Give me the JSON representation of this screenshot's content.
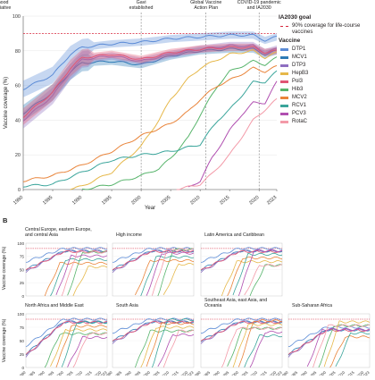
{
  "panel_a": {
    "ylabel": "Vaccine coverage (%)",
    "xlabel": "Year",
    "events": [
      {
        "year": 1974,
        "label": "Universal childhood immunisation initiative"
      },
      {
        "year": 2000,
        "label": "Gavi established"
      },
      {
        "year": 2011,
        "label": "Global Vaccine Action Plan"
      },
      {
        "year": 2020,
        "label": "COVID-19 pandemic and IA2030"
      }
    ],
    "goal": {
      "value": 90,
      "label": "90% coverage for life-course vaccines"
    }
  },
  "panel_b": {
    "label": "B",
    "ylabel": "Vaccine coverage (%)"
  },
  "legend": {
    "goal_title": "IA2030 goal",
    "goal_item": "90% coverage for life-course vaccines",
    "vaccine_title": "Vaccine",
    "items": [
      {
        "name": "DTP1",
        "color": "#5b8bd6"
      },
      {
        "name": "MCV1",
        "color": "#2e7bb6"
      },
      {
        "name": "DTP3",
        "color": "#8e6fc1"
      },
      {
        "name": "HepB3",
        "color": "#e6b84a"
      },
      {
        "name": "Pol3",
        "color": "#e15574"
      },
      {
        "name": "Hib3",
        "color": "#57b46b"
      },
      {
        "name": "MCV2",
        "color": "#e9843a"
      },
      {
        "name": "RCV1",
        "color": "#3aa59b"
      },
      {
        "name": "PCV3",
        "color": "#b04fb0"
      },
      {
        "name": "RotaC",
        "color": "#f39aa8"
      }
    ]
  },
  "chart_data": [
    {
      "type": "line",
      "panel": "A",
      "xlabel": "Year",
      "ylabel": "Vaccine coverage (%)",
      "xlim": [
        1980,
        2023
      ],
      "ylim": [
        0,
        100
      ],
      "x_ticks": [
        "1980",
        "1985",
        "1990",
        "1995",
        "2000",
        "2005",
        "2010",
        "2015",
        "2020",
        "2023"
      ],
      "y_ticks": [
        "0",
        "20",
        "40",
        "60",
        "80",
        "100"
      ],
      "reference_line": {
        "y": 90,
        "label": "90% coverage for life-course vaccines"
      },
      "series": [
        {
          "name": "DTP1",
          "x": [
            1980,
            1985,
            1988,
            1990,
            1995,
            2000,
            2005,
            2010,
            2015,
            2019,
            2021,
            2023
          ],
          "y": [
            58,
            66,
            78,
            82,
            84,
            85,
            87,
            88,
            89,
            89,
            86,
            88
          ]
        },
        {
          "name": "MCV1",
          "x": [
            1980,
            1985,
            1988,
            1990,
            1995,
            2000,
            2005,
            2010,
            2015,
            2019,
            2021,
            2023
          ],
          "y": [
            44,
            56,
            68,
            73,
            74,
            72,
            77,
            80,
            81,
            81,
            78,
            80
          ]
        },
        {
          "name": "DTP3",
          "x": [
            1980,
            1985,
            1988,
            1990,
            1995,
            2000,
            2005,
            2010,
            2015,
            2019,
            2021,
            2023
          ],
          "y": [
            40,
            54,
            68,
            75,
            77,
            74,
            78,
            81,
            83,
            83,
            79,
            81
          ]
        },
        {
          "name": "Pol3",
          "x": [
            1980,
            1985,
            1988,
            1990,
            1995,
            2000,
            2005,
            2010,
            2015,
            2019,
            2021,
            2023
          ],
          "y": [
            42,
            56,
            70,
            76,
            78,
            75,
            79,
            81,
            82,
            82,
            79,
            80
          ]
        },
        {
          "name": "Hib3",
          "x": [
            1990,
            1995,
            2000,
            2003,
            2005,
            2008,
            2010,
            2013,
            2015,
            2019,
            2021,
            2023
          ],
          "y": [
            0,
            3,
            8,
            12,
            18,
            30,
            43,
            60,
            68,
            74,
            72,
            76
          ]
        },
        {
          "name": "HepB3",
          "x": [
            1988,
            1990,
            1995,
            2000,
            2003,
            2005,
            2008,
            2010,
            2013,
            2015,
            2019,
            2021,
            2023
          ],
          "y": [
            0,
            2,
            10,
            25,
            40,
            52,
            64,
            70,
            75,
            78,
            80,
            76,
            79
          ]
        },
        {
          "name": "MCV2",
          "x": [
            1980,
            1985,
            1990,
            1995,
            2000,
            2005,
            2008,
            2010,
            2013,
            2015,
            2019,
            2021,
            2023
          ],
          "y": [
            5,
            8,
            14,
            22,
            31,
            38,
            45,
            52,
            60,
            63,
            70,
            68,
            71
          ]
        },
        {
          "name": "RCV1",
          "x": [
            1980,
            1985,
            1990,
            1995,
            2000,
            2005,
            2010,
            2013,
            2015,
            2019,
            2021,
            2023
          ],
          "y": [
            2,
            3,
            10,
            17,
            20,
            22,
            26,
            40,
            46,
            62,
            62,
            68
          ]
        },
        {
          "name": "PCV3",
          "x": [
            2008,
            2010,
            2012,
            2015,
            2017,
            2019,
            2021,
            2023
          ],
          "y": [
            1,
            5,
            18,
            34,
            43,
            50,
            50,
            62
          ]
        },
        {
          "name": "RotaC",
          "x": [
            2006,
            2010,
            2012,
            2015,
            2017,
            2019,
            2021,
            2023
          ],
          "y": [
            0,
            3,
            9,
            20,
            30,
            40,
            46,
            52
          ]
        }
      ]
    },
    {
      "type": "line",
      "panel": "B",
      "title": "Central Europe, eastern Europe, and central Asia",
      "ylim": [
        0,
        100
      ],
      "y_ticks": [
        "0",
        "25",
        "50",
        "75",
        "100"
      ]
    },
    {
      "type": "line",
      "panel": "B",
      "title": "High income",
      "ylim": [
        0,
        100
      ]
    },
    {
      "type": "line",
      "panel": "B",
      "title": "Latin America and Caribbean",
      "ylim": [
        0,
        100
      ]
    },
    {
      "type": "line",
      "panel": "B",
      "title": "North Africa and Middle East",
      "ylim": [
        0,
        100
      ],
      "y_ticks": [
        "0",
        "25",
        "50",
        "75",
        "100"
      ],
      "x_ticks": [
        "1980",
        "1985",
        "1990",
        "1995",
        "2000",
        "2005",
        "2010",
        "2015",
        "2020",
        "2023"
      ]
    },
    {
      "type": "line",
      "panel": "B",
      "title": "South Asia",
      "ylim": [
        0,
        100
      ],
      "x_ticks": [
        "1980",
        "1985",
        "1990",
        "1995",
        "2000",
        "2005",
        "2010",
        "2015",
        "2020",
        "2023"
      ]
    },
    {
      "type": "line",
      "panel": "B",
      "title": "Southeast Asia, east Asia, and Oceania",
      "ylim": [
        0,
        100
      ],
      "x_ticks": [
        "1980",
        "1985",
        "1990",
        "1995",
        "2000",
        "2005",
        "2010",
        "2015",
        "2020",
        "2023"
      ]
    },
    {
      "type": "line",
      "panel": "B",
      "title": "Sub-Saharan Africa",
      "ylim": [
        0,
        100
      ],
      "x_ticks": [
        "1980",
        "1985",
        "1990",
        "1995",
        "2000",
        "2005",
        "2010",
        "2015",
        "2020",
        "2023"
      ]
    }
  ]
}
